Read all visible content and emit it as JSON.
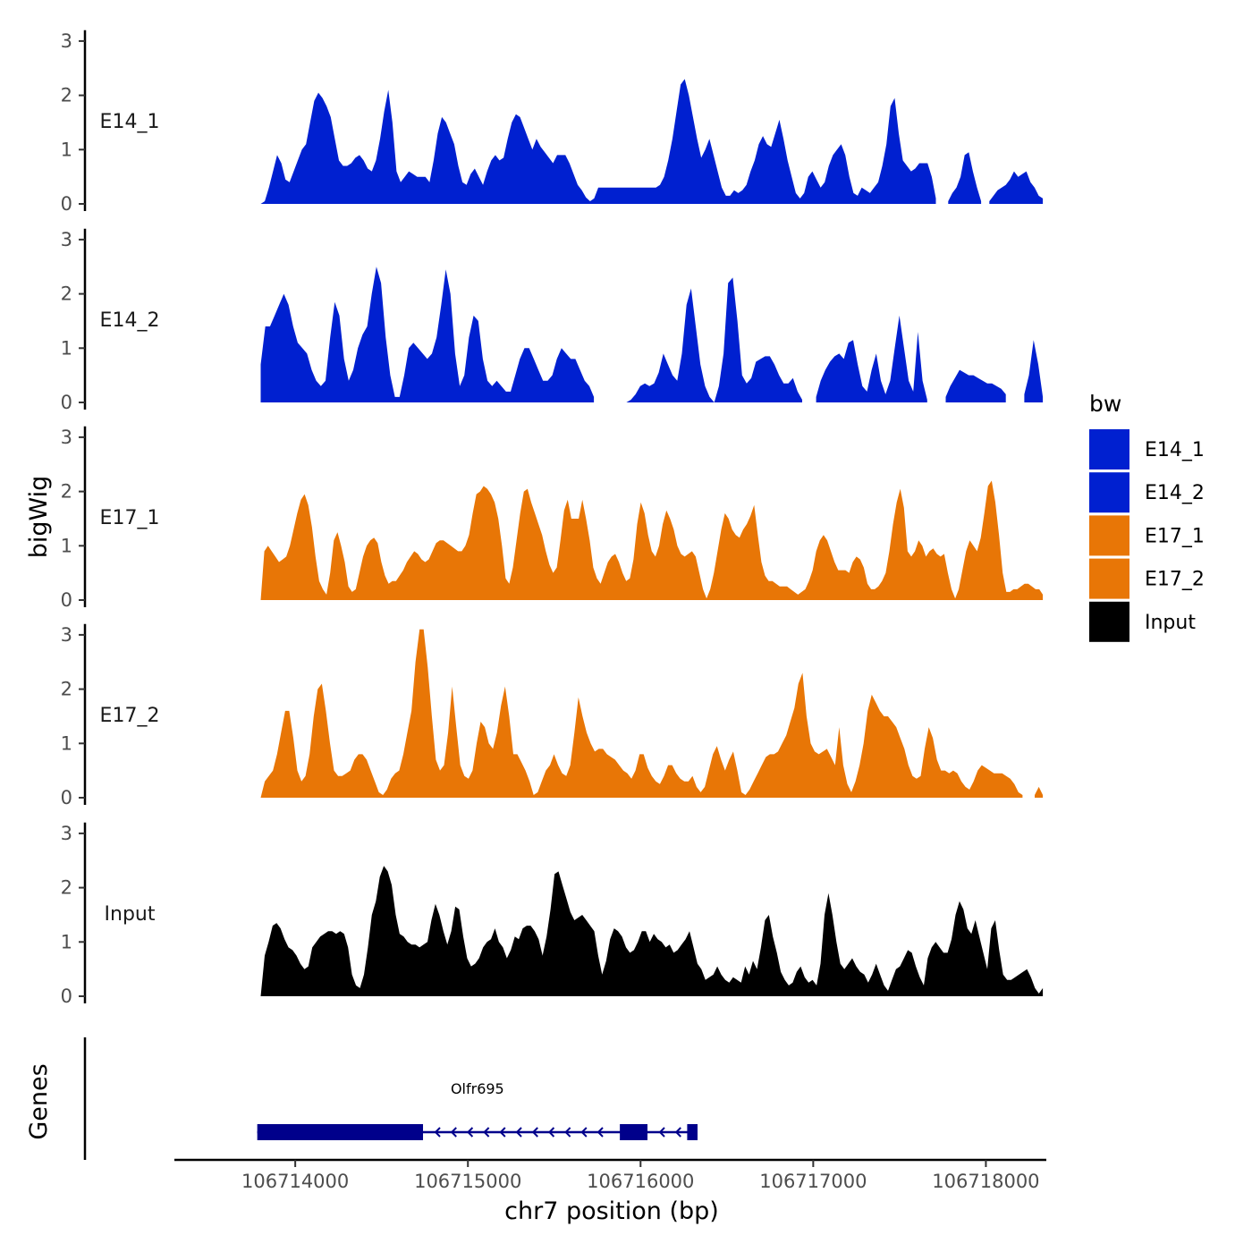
{
  "chart_data": {
    "type": "area",
    "region": "chr7",
    "xlabel": "chr7 position (bp)",
    "ylabel": "bigWig",
    "genes_label": "Genes",
    "xlim": [
      106713300,
      106718350
    ],
    "data_start": 106713800,
    "data_end": 106718330,
    "ylim": [
      0,
      3.2
    ],
    "y_ticks": [
      0,
      1,
      2,
      3
    ],
    "x_ticks": [
      106714000,
      106715000,
      106716000,
      106717000,
      106718000
    ],
    "x_tick_labels": [
      "106714000",
      "106715000",
      "106716000",
      "106717000",
      "106718000"
    ],
    "legend": {
      "title": "bw",
      "entries": [
        {
          "label": "E14_1",
          "color": "#0020d0"
        },
        {
          "label": "E14_2",
          "color": "#0020d0"
        },
        {
          "label": "E17_1",
          "color": "#e87606"
        },
        {
          "label": "E17_2",
          "color": "#e87606"
        },
        {
          "label": "Input",
          "color": "#000000"
        }
      ]
    },
    "series": [
      {
        "name": "E14_1",
        "color": "#0020d0",
        "values": [
          0,
          0.05,
          0.3,
          0.6,
          0.9,
          0.75,
          0.45,
          0.4,
          0.6,
          0.8,
          1,
          1.1,
          1.5,
          1.9,
          2.05,
          1.95,
          1.8,
          1.6,
          1.2,
          0.8,
          0.7,
          0.7,
          0.75,
          0.85,
          0.9,
          0.8,
          0.65,
          0.6,
          0.8,
          1.2,
          1.7,
          2.1,
          1.5,
          0.6,
          0.4,
          0.5,
          0.6,
          0.55,
          0.5,
          0.5,
          0.5,
          0.4,
          0.8,
          1.3,
          1.6,
          1.5,
          1.3,
          1.1,
          0.7,
          0.4,
          0.35,
          0.55,
          0.65,
          0.5,
          0.35,
          0.6,
          0.8,
          0.9,
          0.8,
          0.85,
          1.2,
          1.5,
          1.65,
          1.6,
          1.4,
          1.2,
          1,
          1.2,
          1.05,
          0.95,
          0.85,
          0.75,
          0.9,
          0.9,
          0.9,
          0.75,
          0.55,
          0.35,
          0.25,
          0.12,
          0.05,
          0.1,
          0.3,
          0.3,
          0.3,
          0.3,
          0.3,
          0.3,
          0.3,
          0.3,
          0.3,
          0.3,
          0.3,
          0.3,
          0.3,
          0.3,
          0.3,
          0.35,
          0.5,
          0.8,
          1.2,
          1.7,
          2.2,
          2.3,
          2,
          1.6,
          1.2,
          0.85,
          1,
          1.2,
          0.9,
          0.6,
          0.3,
          0.15,
          0.15,
          0.25,
          0.2,
          0.25,
          0.35,
          0.6,
          0.8,
          1.1,
          1.25,
          1.1,
          1.05,
          1.3,
          1.55,
          1.2,
          0.8,
          0.5,
          0.2,
          0.1,
          0.2,
          0.5,
          0.6,
          0.45,
          0.3,
          0.4,
          0.7,
          0.9,
          1,
          1.1,
          0.9,
          0.5,
          0.2,
          0.15,
          0.3,
          0.25,
          0.2,
          0.3,
          0.4,
          0.7,
          1.1,
          1.8,
          1.95,
          1.3,
          0.8,
          0.7,
          0.6,
          0.65,
          0.75,
          0.75,
          0.75,
          0.5,
          0.1,
          null,
          null,
          0.05,
          0.2,
          0.3,
          0.5,
          0.9,
          0.95,
          0.6,
          0.3,
          0.05,
          null,
          0.05,
          0.15,
          0.25,
          0.3,
          0.35,
          0.45,
          0.6,
          0.5,
          0.55,
          0.6,
          0.4,
          0.3,
          0.15,
          0.1
        ]
      },
      {
        "name": "E14_2",
        "color": "#0020d0",
        "values": [
          0.7,
          1.4,
          1.4,
          1.6,
          1.8,
          2.0,
          1.8,
          1.4,
          1.1,
          1.0,
          0.9,
          0.6,
          0.4,
          0.3,
          0.4,
          1.2,
          1.85,
          1.6,
          0.8,
          0.4,
          0.6,
          1.0,
          1.25,
          1.4,
          2.0,
          2.5,
          2.2,
          1.2,
          0.5,
          0.1,
          0.1,
          0.5,
          1.0,
          1.1,
          1.0,
          0.9,
          0.8,
          0.9,
          1.2,
          1.8,
          2.45,
          2.0,
          0.9,
          0.3,
          0.5,
          1.2,
          1.6,
          1.5,
          0.8,
          0.4,
          0.3,
          0.4,
          0.3,
          0.2,
          0.2,
          0.5,
          0.8,
          1.0,
          1.0,
          0.8,
          0.6,
          0.4,
          0.4,
          0.5,
          0.8,
          1.0,
          0.9,
          0.8,
          0.8,
          0.6,
          0.4,
          0.3,
          0.1,
          null,
          null,
          null,
          null,
          null,
          null,
          0,
          0.05,
          0.15,
          0.3,
          0.35,
          0.3,
          0.35,
          0.55,
          0.9,
          0.7,
          0.5,
          0.4,
          0.9,
          1.8,
          2.1,
          1.4,
          0.7,
          0.3,
          0.1,
          0,
          0.3,
          0.9,
          2.2,
          2.3,
          1.5,
          0.5,
          0.35,
          0.45,
          0.75,
          0.8,
          0.85,
          0.85,
          0.7,
          0.5,
          0.35,
          0.35,
          0.45,
          0.2,
          0.05,
          null,
          null,
          0.1,
          0.4,
          0.6,
          0.75,
          0.85,
          0.9,
          0.8,
          1.1,
          1.15,
          0.7,
          0.3,
          0.2,
          0.6,
          0.9,
          0.4,
          0.15,
          0.4,
          1.0,
          1.6,
          1.0,
          0.4,
          0.2,
          1.3,
          0.4,
          0.05,
          null,
          null,
          null,
          0.1,
          0.3,
          0.45,
          0.6,
          0.55,
          0.5,
          0.5,
          0.45,
          0.4,
          0.35,
          0.35,
          0.3,
          0.25,
          0.15,
          null,
          null,
          null,
          0.15,
          0.5,
          1.15,
          0.7,
          0.1
        ]
      },
      {
        "name": "E17_1",
        "color": "#e87606",
        "values": [
          0.0,
          0.9,
          1.0,
          0.9,
          0.8,
          0.7,
          0.75,
          0.8,
          1.0,
          1.3,
          1.6,
          1.85,
          1.95,
          1.75,
          1.35,
          0.8,
          0.35,
          0.2,
          0.1,
          0.5,
          1.1,
          1.25,
          1.0,
          0.7,
          0.25,
          0.15,
          0.2,
          0.5,
          0.8,
          1.0,
          1.1,
          1.15,
          1.05,
          0.7,
          0.45,
          0.3,
          0.35,
          0.35,
          0.45,
          0.55,
          0.7,
          0.8,
          0.9,
          0.85,
          0.75,
          0.7,
          0.75,
          0.9,
          1.05,
          1.1,
          1.1,
          1.05,
          1.0,
          0.95,
          0.9,
          0.9,
          1.0,
          1.2,
          1.6,
          1.95,
          2.0,
          2.1,
          2.05,
          1.95,
          1.8,
          1.5,
          1.0,
          0.4,
          0.3,
          0.6,
          1.1,
          1.6,
          2.0,
          2.05,
          1.8,
          1.6,
          1.4,
          1.2,
          0.9,
          0.65,
          0.5,
          0.6,
          1.1,
          1.65,
          1.85,
          1.5,
          1.5,
          1.5,
          1.85,
          1.5,
          1.1,
          0.6,
          0.4,
          0.3,
          0.5,
          0.7,
          0.8,
          0.85,
          0.7,
          0.5,
          0.35,
          0.4,
          0.75,
          1.4,
          1.8,
          1.6,
          1.2,
          0.9,
          0.8,
          1.0,
          1.4,
          1.65,
          1.5,
          1.3,
          1.0,
          0.85,
          0.8,
          0.85,
          0.9,
          0.8,
          0.5,
          0.2,
          0.03,
          0.2,
          0.5,
          0.9,
          1.3,
          1.6,
          1.5,
          1.3,
          1.2,
          1.15,
          1.3,
          1.4,
          1.55,
          1.75,
          1.2,
          0.7,
          0.45,
          0.35,
          0.35,
          0.3,
          0.25,
          0.25,
          0.25,
          0.2,
          0.15,
          0.1,
          0.15,
          0.2,
          0.35,
          0.55,
          0.9,
          1.1,
          1.2,
          1.1,
          0.9,
          0.7,
          0.55,
          0.55,
          0.55,
          0.5,
          0.7,
          0.8,
          0.75,
          0.6,
          0.3,
          0.2,
          0.2,
          0.25,
          0.35,
          0.5,
          0.9,
          1.4,
          1.8,
          2.05,
          1.7,
          0.9,
          0.8,
          0.9,
          1.1,
          1.0,
          0.8,
          0.9,
          0.95,
          0.85,
          0.8,
          0.85,
          0.5,
          0.2,
          0.03,
          0.2,
          0.55,
          0.9,
          1.1,
          1.0,
          0.9,
          1.15,
          1.6,
          2.1,
          2.2,
          1.8,
          1.2,
          0.5,
          0.15,
          0.15,
          0.2,
          0.2,
          0.25,
          0.3,
          0.3,
          0.25,
          0.2,
          0.2,
          0.1
        ]
      },
      {
        "name": "E17_2",
        "color": "#e87606",
        "values": [
          0.0,
          0.3,
          0.4,
          0.5,
          0.8,
          1.2,
          1.6,
          1.6,
          1.1,
          0.5,
          0.3,
          0.4,
          0.8,
          1.5,
          2.0,
          2.1,
          1.6,
          1.0,
          0.5,
          0.4,
          0.4,
          0.45,
          0.5,
          0.7,
          0.8,
          0.8,
          0.7,
          0.5,
          0.3,
          0.1,
          0.05,
          0.15,
          0.35,
          0.45,
          0.5,
          0.8,
          1.2,
          1.6,
          2.5,
          3.1,
          3.1,
          2.4,
          1.5,
          0.7,
          0.5,
          0.6,
          1.2,
          2.05,
          1.3,
          0.6,
          0.4,
          0.35,
          0.5,
          1.0,
          1.4,
          1.3,
          1.0,
          0.9,
          1.2,
          1.7,
          2.05,
          1.5,
          0.8,
          0.8,
          0.65,
          0.5,
          0.3,
          0.05,
          0.1,
          0.3,
          0.5,
          0.6,
          0.8,
          0.6,
          0.45,
          0.4,
          0.6,
          1.2,
          1.85,
          1.5,
          1.2,
          1.0,
          0.85,
          0.9,
          0.9,
          0.8,
          0.75,
          0.7,
          0.6,
          0.5,
          0.45,
          0.35,
          0.5,
          0.8,
          0.8,
          0.55,
          0.4,
          0.3,
          0.25,
          0.4,
          0.6,
          0.6,
          0.45,
          0.35,
          0.3,
          0.3,
          0.4,
          0.2,
          0.1,
          0.2,
          0.5,
          0.8,
          0.95,
          0.7,
          0.5,
          0.7,
          0.85,
          0.5,
          0.1,
          0.05,
          0.15,
          0.3,
          0.45,
          0.6,
          0.75,
          0.8,
          0.8,
          0.85,
          1.0,
          1.15,
          1.4,
          1.65,
          2.1,
          2.3,
          1.5,
          1.0,
          0.85,
          0.8,
          0.85,
          0.9,
          0.75,
          0.6,
          1.3,
          0.6,
          0.25,
          0.1,
          0.3,
          0.6,
          1.0,
          1.6,
          1.9,
          1.75,
          1.6,
          1.5,
          1.5,
          1.4,
          1.3,
          1.1,
          0.9,
          0.6,
          0.4,
          0.35,
          0.4,
          0.9,
          1.3,
          1.1,
          0.7,
          0.5,
          0.5,
          0.45,
          0.5,
          0.45,
          0.3,
          0.2,
          0.15,
          0.3,
          0.5,
          0.6,
          0.55,
          0.5,
          0.45,
          0.45,
          0.45,
          0.4,
          0.35,
          0.25,
          0.1,
          0.05,
          null,
          null,
          0.05,
          0.2,
          0.05
        ]
      },
      {
        "name": "Input",
        "color": "#000000",
        "values": [
          0.0,
          0.75,
          1.0,
          1.3,
          1.35,
          1.25,
          1.05,
          0.9,
          0.85,
          0.75,
          0.6,
          0.5,
          0.55,
          0.9,
          1.0,
          1.1,
          1.15,
          1.2,
          1.2,
          1.15,
          1.2,
          1.15,
          0.9,
          0.4,
          0.2,
          0.15,
          0.4,
          0.9,
          1.5,
          1.75,
          2.2,
          2.4,
          2.3,
          2.05,
          1.5,
          1.15,
          1.1,
          1.0,
          0.95,
          0.95,
          0.9,
          0.95,
          1.0,
          1.4,
          1.7,
          1.5,
          1.2,
          0.95,
          1.2,
          1.65,
          1.6,
          1.1,
          0.7,
          0.55,
          0.6,
          0.7,
          0.9,
          1.0,
          1.05,
          1.25,
          1.0,
          0.9,
          0.7,
          0.85,
          1.1,
          1.05,
          1.25,
          1.3,
          1.3,
          1.2,
          1.05,
          0.75,
          1.1,
          1.6,
          2.25,
          2.3,
          2.05,
          1.8,
          1.55,
          1.4,
          1.45,
          1.5,
          1.4,
          1.3,
          1.2,
          0.75,
          0.4,
          0.65,
          1.05,
          1.25,
          1.2,
          1.1,
          0.9,
          0.8,
          0.85,
          1.0,
          1.2,
          1.2,
          1.0,
          1.15,
          1.05,
          1.0,
          0.9,
          0.95,
          0.8,
          0.85,
          0.95,
          1.05,
          1.2,
          0.9,
          0.6,
          0.5,
          0.3,
          0.35,
          0.4,
          0.55,
          0.4,
          0.3,
          0.25,
          0.35,
          0.3,
          0.25,
          0.55,
          0.4,
          0.65,
          0.5,
          0.9,
          1.4,
          1.5,
          1.1,
          0.8,
          0.45,
          0.3,
          0.2,
          0.25,
          0.45,
          0.55,
          0.35,
          0.25,
          0.3,
          0.2,
          0.6,
          1.5,
          1.9,
          1.5,
          1.0,
          0.6,
          0.5,
          0.6,
          0.7,
          0.55,
          0.45,
          0.4,
          0.25,
          0.4,
          0.6,
          0.4,
          0.2,
          0.1,
          0.3,
          0.5,
          0.55,
          0.7,
          0.85,
          0.8,
          0.55,
          0.35,
          0.2,
          0.7,
          0.9,
          1.0,
          0.9,
          0.8,
          0.8,
          1.05,
          1.5,
          1.75,
          1.6,
          1.25,
          1.15,
          1.4,
          1.1,
          0.8,
          0.5,
          1.25,
          1.4,
          0.85,
          0.4,
          0.3,
          0.3,
          0.35,
          0.4,
          0.45,
          0.5,
          0.35,
          0.15,
          0.05,
          0.15
        ]
      }
    ],
    "gene": {
      "name": "Olfr695",
      "strand": "-",
      "color": "#00008b",
      "exons": [
        [
          106713780,
          106714740
        ],
        [
          106715880,
          106716040
        ],
        [
          106716270,
          106716330
        ]
      ],
      "span": [
        106713780,
        106716330
      ]
    }
  }
}
